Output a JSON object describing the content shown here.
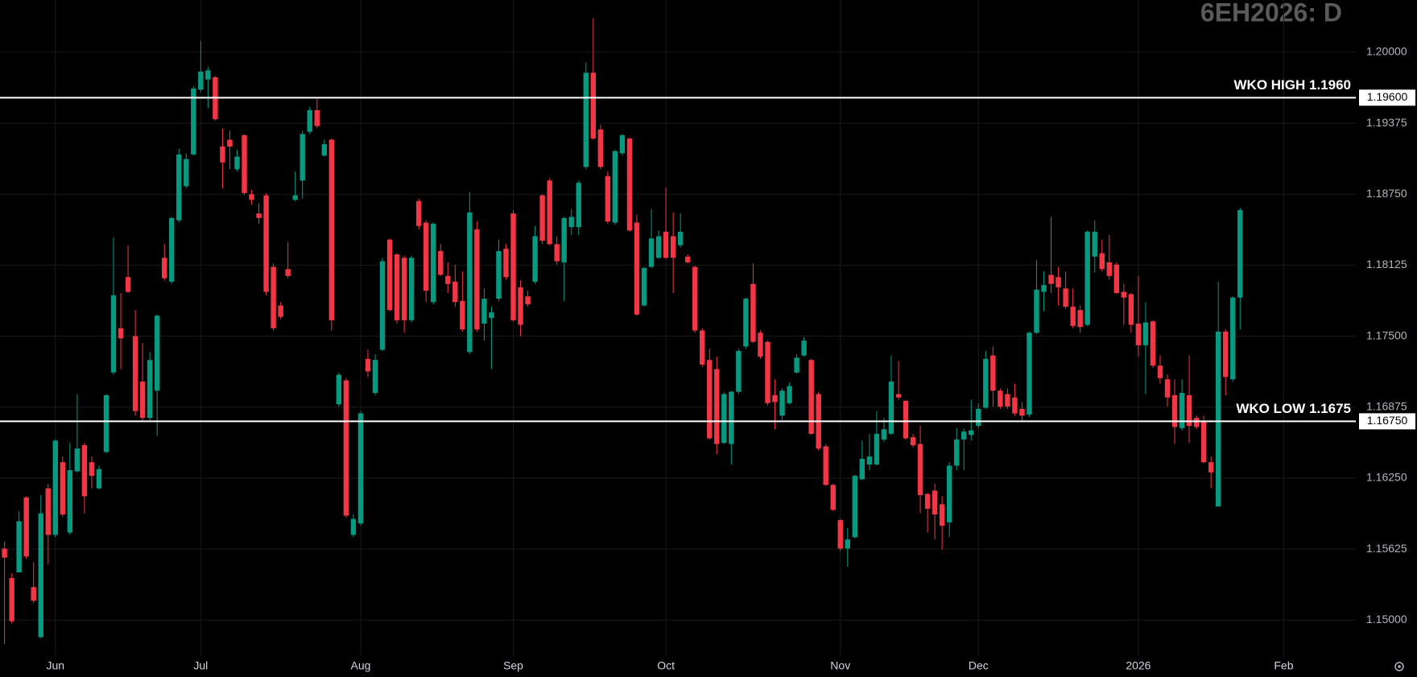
{
  "chart_data": {
    "type": "candlestick",
    "title": "6EH2026: D",
    "up_color": "#089981",
    "down_color": "#f23645",
    "grid": true,
    "ylim": [
      1.1469,
      1.2046
    ],
    "yticks": [
      {
        "value": 1.15,
        "label": "1.15000"
      },
      {
        "value": 1.15625,
        "label": "1.15625"
      },
      {
        "value": 1.1625,
        "label": "1.16250"
      },
      {
        "value": 1.16875,
        "label": "1.16875"
      },
      {
        "value": 1.175,
        "label": "1.17500"
      },
      {
        "value": 1.18125,
        "label": "1.18125"
      },
      {
        "value": 1.1875,
        "label": "1.18750"
      },
      {
        "value": 1.19375,
        "label": "1.19375"
      },
      {
        "value": 1.2,
        "label": "1.20000"
      }
    ],
    "annotations": [
      {
        "label": "WKO HIGH 1.1960",
        "value": 1.196,
        "price_label": "1.19600"
      },
      {
        "label": "WKO LOW 1.1675",
        "value": 1.1675,
        "price_label": "1.16750"
      }
    ],
    "categories": [
      null,
      null,
      null,
      null,
      null,
      null,
      null,
      "Jun",
      null,
      null,
      null,
      null,
      null,
      null,
      null,
      null,
      null,
      null,
      null,
      null,
      null,
      null,
      null,
      null,
      null,
      null,
      null,
      "Jul",
      null,
      null,
      null,
      null,
      null,
      null,
      null,
      null,
      null,
      null,
      null,
      null,
      null,
      null,
      null,
      null,
      null,
      null,
      null,
      null,
      null,
      "Aug",
      null,
      null,
      null,
      null,
      null,
      null,
      null,
      null,
      null,
      null,
      null,
      null,
      null,
      null,
      null,
      null,
      null,
      null,
      null,
      null,
      "Sep",
      null,
      null,
      null,
      null,
      null,
      null,
      null,
      null,
      null,
      null,
      null,
      null,
      null,
      null,
      null,
      null,
      null,
      null,
      null,
      null,
      "Oct",
      null,
      null,
      null,
      null,
      null,
      null,
      null,
      null,
      null,
      null,
      null,
      null,
      null,
      null,
      null,
      null,
      null,
      null,
      null,
      null,
      null,
      null,
      null,
      "Nov",
      null,
      null,
      null,
      null,
      null,
      null,
      null,
      null,
      null,
      null,
      null,
      null,
      null,
      null,
      null,
      null,
      null,
      null,
      "Dec",
      null,
      null,
      null,
      null,
      null,
      null,
      null,
      null,
      null,
      null,
      null,
      null,
      null,
      null,
      null,
      null,
      null,
      null,
      null,
      null,
      null,
      "2026",
      null,
      null,
      null,
      null,
      null,
      null,
      null,
      null,
      null,
      null,
      null,
      null,
      null,
      null,
      null,
      null,
      null,
      null,
      null,
      "Feb",
      null,
      null,
      null,
      null,
      null,
      null,
      null,
      null,
      null
    ],
    "open": [
      1.1563,
      1.1537,
      1.1542,
      1.1608,
      1.1529,
      1.1485,
      1.1616,
      1.1575,
      1.1639,
      1.1577,
      1.1631,
      1.1654,
      1.1639,
      1.1616,
      1.1648,
      1.1718,
      1.1757,
      1.1802,
      1.175,
      1.171,
      1.1678,
      1.1702,
      1.1819,
      1.1798,
      1.1852,
      1.1882,
      1.191,
      1.1967,
      1.1976,
      1.1978,
      1.1917,
      1.1923,
      1.1897,
      1.1927,
      1.1875,
      1.1858,
      1.1874,
      1.1811,
      1.1777,
      1.1809,
      1.187,
      1.1887,
      1.193,
      1.1949,
      1.1909,
      1.1923,
      1.169,
      1.1711,
      1.1575,
      1.1585,
      1.173,
      1.17,
      1.1738,
      1.1835,
      1.1822,
      1.1819,
      1.1764,
      1.1869,
      1.185,
      1.178,
      1.1825,
      1.1803,
      1.1798,
      1.1781,
      1.1736,
      1.1844,
      1.1761,
      1.1766,
      1.1783,
      1.1827,
      1.1858,
      1.1793,
      1.1785,
      1.1798,
      1.1874,
      1.1887,
      1.1831,
      1.1815,
      1.1846,
      1.1846,
      1.1899,
      1.1982,
      1.1932,
      1.1891,
      1.185,
      1.1911,
      1.1924,
      1.185,
      1.1777,
      1.1811,
      1.1819,
      1.1842,
      1.1838,
      1.183,
      1.182,
      1.1811,
      1.1755,
      1.1729,
      1.1721,
      1.1656,
      1.1655,
      1.1701,
      1.1741,
      1.1796,
      1.1753,
      1.1745,
      1.1698,
      1.168,
      1.1691,
      1.1718,
      1.1733,
      1.1729,
      1.1699,
      1.1653,
      1.1619,
      1.1588,
      1.1563,
      1.1573,
      1.1624,
      1.1637,
      1.1637,
      1.1659,
      1.1664,
      1.1699,
      1.1693,
      1.1661,
      1.1655,
      1.1611,
      1.1614,
      1.1602,
      1.1586,
      1.1636,
      1.1659,
      1.1663,
      1.1671,
      1.1687,
      1.1733,
      1.1702,
      1.1699,
      1.1696,
      1.1686,
      1.1681,
      1.1753,
      1.1789,
      1.1804,
      1.1802,
      1.1792,
      1.1776,
      1.1773,
      1.176,
      1.182,
      1.1823,
      1.1815,
      1.1813,
      1.1789,
      1.1787,
      1.1761,
      1.1742,
      1.1763,
      1.1724,
      1.1712,
      1.1698,
      1.1669,
      1.1698,
      1.1678,
      1.1675,
      1.1639,
      1.16,
      1.1754,
      1.1712,
      1.1784,
      null,
      null,
      null,
      null,
      null,
      null,
      null,
      null,
      null,
      null,
      null,
      null,
      null,
      null,
      null
    ],
    "high": [
      1.1569,
      1.1541,
      1.1596,
      1.1609,
      1.1551,
      1.161,
      1.162,
      1.1659,
      1.1644,
      1.1656,
      1.1699,
      1.1656,
      1.1644,
      1.1636,
      1.1699,
      1.1837,
      1.1788,
      1.183,
      1.1773,
      1.1744,
      1.1736,
      1.1769,
      1.1831,
      1.1855,
      1.1915,
      1.1911,
      1.197,
      1.201,
      1.1987,
      1.1979,
      1.1933,
      1.1931,
      1.1914,
      1.1928,
      1.1879,
      1.1867,
      1.1876,
      1.1814,
      1.178,
      1.1833,
      1.1895,
      1.1931,
      1.1952,
      1.1959,
      1.1923,
      1.1924,
      1.1718,
      1.1713,
      1.1593,
      1.1684,
      1.1738,
      1.1734,
      1.1819,
      1.1836,
      1.1823,
      1.1821,
      1.1821,
      1.1871,
      1.1852,
      1.185,
      1.1831,
      1.1815,
      1.1813,
      1.1807,
      1.1877,
      1.1851,
      1.1792,
      1.1776,
      1.1835,
      1.1831,
      1.1861,
      1.1799,
      1.179,
      1.1847,
      1.1875,
      1.1889,
      1.1838,
      1.1855,
      1.1862,
      1.1887,
      1.1991,
      1.203,
      1.1936,
      1.1895,
      1.1914,
      1.1928,
      1.1925,
      1.1857,
      1.1811,
      1.1862,
      1.1843,
      1.1881,
      1.1859,
      1.1858,
      1.1822,
      1.1812,
      1.1757,
      1.1739,
      1.1732,
      1.1701,
      1.1702,
      1.1739,
      1.1784,
      1.1814,
      1.1755,
      1.1746,
      1.1712,
      1.1704,
      1.1709,
      1.1734,
      1.1749,
      1.173,
      1.1701,
      1.1655,
      1.162,
      1.1589,
      1.1581,
      1.1628,
      1.1658,
      1.1664,
      1.1684,
      1.1678,
      1.1733,
      1.1728,
      1.1694,
      1.1664,
      1.1671,
      1.1612,
      1.162,
      1.1609,
      1.1639,
      1.1669,
      1.1669,
      1.1694,
      1.1691,
      1.1737,
      1.1741,
      1.1704,
      1.1704,
      1.1708,
      1.1692,
      1.1754,
      1.1817,
      1.1807,
      1.1855,
      1.1811,
      1.1807,
      1.1792,
      1.1777,
      1.1843,
      1.1852,
      1.1835,
      1.1839,
      1.1815,
      1.1796,
      1.1788,
      1.1803,
      1.178,
      1.1764,
      1.1733,
      1.1716,
      1.1712,
      1.1712,
      1.1733,
      1.168,
      1.168,
      1.1644,
      1.1798,
      1.1756,
      1.1785,
      1.1863,
      null,
      null,
      null,
      null,
      null,
      null,
      null,
      null,
      null,
      null,
      null,
      null,
      null,
      null,
      null
    ],
    "low": [
      1.1479,
      1.1497,
      1.1542,
      1.1554,
      1.1515,
      1.1484,
      1.1549,
      1.1573,
      1.1591,
      1.1575,
      1.163,
      1.1594,
      1.1616,
      1.1615,
      1.1647,
      1.1716,
      1.1721,
      1.1788,
      1.168,
      1.1676,
      1.1676,
      1.1662,
      1.1799,
      1.1796,
      1.185,
      1.188,
      1.1909,
      1.1965,
      1.1951,
      1.194,
      1.188,
      1.1897,
      1.1895,
      1.1874,
      1.1866,
      1.1849,
      1.1786,
      1.1755,
      1.1765,
      1.1801,
      1.1869,
      1.1871,
      1.1928,
      1.1933,
      1.1908,
      1.1755,
      1.1688,
      1.159,
      1.1573,
      1.1583,
      1.1714,
      1.1698,
      1.1737,
      1.1772,
      1.1761,
      1.1753,
      1.1762,
      1.1844,
      1.178,
      1.1778,
      1.1803,
      1.1788,
      1.1776,
      1.1754,
      1.1734,
      1.1754,
      1.1746,
      1.1721,
      1.1781,
      1.18,
      1.1763,
      1.175,
      1.1776,
      1.1796,
      1.1831,
      1.183,
      1.1813,
      1.1781,
      1.1839,
      1.1839,
      1.1897,
      1.1923,
      1.1897,
      1.1849,
      1.1848,
      1.1909,
      1.1842,
      1.1768,
      1.1776,
      1.181,
      1.1818,
      1.1818,
      1.1788,
      1.1828,
      1.1814,
      1.1753,
      1.1723,
      1.1659,
      1.1646,
      1.1655,
      1.1637,
      1.1699,
      1.1739,
      1.1744,
      1.173,
      1.1689,
      1.1668,
      1.1676,
      1.169,
      1.1717,
      1.1732,
      1.1663,
      1.1649,
      1.1618,
      1.1596,
      1.1561,
      1.1547,
      1.1572,
      1.1623,
      1.1632,
      1.1636,
      1.1657,
      1.1663,
      1.1694,
      1.1659,
      1.1652,
      1.1594,
      1.1577,
      1.1571,
      1.1562,
      1.1573,
      1.1632,
      1.1632,
      1.1658,
      1.1669,
      1.1686,
      1.1688,
      1.1686,
      1.1686,
      1.168,
      1.1675,
      1.1679,
      1.1752,
      1.1772,
      1.1788,
      1.1777,
      1.1774,
      1.1757,
      1.1753,
      1.1759,
      1.1806,
      1.1807,
      1.18,
      1.1787,
      1.176,
      1.1753,
      1.1732,
      1.1699,
      1.1722,
      1.1708,
      1.1688,
      1.1655,
      1.1667,
      1.1656,
      1.1668,
      1.1638,
      1.1616,
      1.16,
      1.1698,
      1.171,
      1.1756,
      null,
      null,
      null,
      null,
      null,
      null,
      null,
      null,
      null,
      null,
      null,
      null,
      null,
      null,
      null
    ],
    "close": [
      1.1555,
      1.1499,
      1.1587,
      1.1556,
      1.1517,
      1.1594,
      1.1575,
      1.1658,
      1.1593,
      1.1632,
      1.1651,
      1.1609,
      1.1627,
      1.1633,
      1.1698,
      1.1786,
      1.1748,
      1.1789,
      1.1684,
      1.1678,
      1.1729,
      1.1768,
      1.1801,
      1.1854,
      1.191,
      1.1906,
      1.1968,
      1.1983,
      1.1984,
      1.1941,
      1.1903,
      1.1917,
      1.1908,
      1.1876,
      1.187,
      1.1854,
      1.1789,
      1.1757,
      1.1767,
      1.1803,
      1.1874,
      1.1928,
      1.1949,
      1.1935,
      1.1919,
      1.1764,
      1.1716,
      1.1592,
      1.1589,
      1.1682,
      1.1719,
      1.1729,
      1.1816,
      1.1773,
      1.1764,
      1.1764,
      1.1819,
      1.1847,
      1.179,
      1.1849,
      1.1804,
      1.1796,
      1.178,
      1.1756,
      1.1859,
      1.1756,
      1.1783,
      1.1771,
      1.1825,
      1.1802,
      1.1764,
      1.176,
      1.1778,
      1.1838,
      1.1834,
      1.1831,
      1.1816,
      1.1854,
      1.1855,
      1.1885,
      1.1982,
      1.1924,
      1.1899,
      1.1851,
      1.1913,
      1.1927,
      1.1843,
      1.1769,
      1.181,
      1.1836,
      1.1838,
      1.1819,
      1.1819,
      1.1842,
      1.1815,
      1.1755,
      1.1725,
      1.166,
      1.1655,
      1.1699,
      1.1701,
      1.1737,
      1.1783,
      1.1745,
      1.1732,
      1.1691,
      1.1692,
      1.1702,
      1.1706,
      1.1731,
      1.1746,
      1.1664,
      1.1651,
      1.1619,
      1.1597,
      1.1563,
      1.1571,
      1.1627,
      1.1642,
      1.1644,
      1.1664,
      1.1668,
      1.171,
      1.1696,
      1.166,
      1.1654,
      1.161,
      1.1598,
      1.1593,
      1.1583,
      1.1636,
      1.1659,
      1.1666,
      1.1667,
      1.1686,
      1.173,
      1.1702,
      1.1688,
      1.1688,
      1.1682,
      1.168,
      1.1753,
      1.1791,
      1.1795,
      1.1796,
      1.1793,
      1.1776,
      1.1759,
      1.1758,
      1.1842,
      1.1842,
      1.1809,
      1.1803,
      1.1788,
      1.1784,
      1.176,
      1.1742,
      1.1762,
      1.1724,
      1.1713,
      1.1696,
      1.167,
      1.17,
      1.1671,
      1.167,
      1.1639,
      1.163,
      1.1754,
      1.1714,
      1.1784,
      1.1861,
      null,
      null,
      null,
      null,
      null,
      null,
      null,
      null,
      null,
      null,
      null,
      null,
      null,
      null,
      null
    ]
  }
}
